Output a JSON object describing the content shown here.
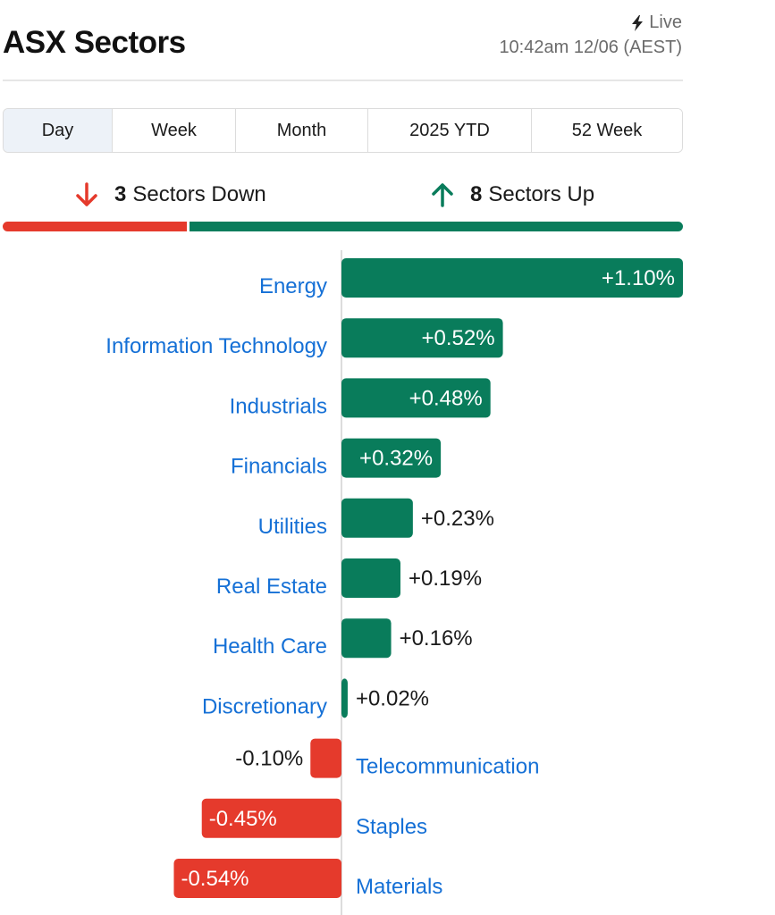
{
  "header": {
    "title": "ASX Sectors",
    "live_label": "Live",
    "timestamp": "10:42am 12/06 (AEST)"
  },
  "tabs": [
    {
      "label": "Day",
      "active": true
    },
    {
      "label": "Week",
      "active": false
    },
    {
      "label": "Month",
      "active": false
    },
    {
      "label": "2025 YTD",
      "active": false
    },
    {
      "label": "52 Week",
      "active": false
    }
  ],
  "summary": {
    "down_count": "3",
    "down_label": "Sectors Down",
    "up_count": "8",
    "up_label": "Sectors Up"
  },
  "icons": {
    "live": "lightning-bolt-icon",
    "down": "arrow-down-icon",
    "up": "arrow-up-icon"
  },
  "colors": {
    "up": "#097c5b",
    "down": "#e53a2c",
    "sector_link": "#1570d6"
  },
  "chart_data": {
    "type": "bar",
    "orientation": "horizontal",
    "title": "",
    "xlabel": "",
    "ylabel": "",
    "categories": [
      "Energy",
      "Information Technology",
      "Industrials",
      "Financials",
      "Utilities",
      "Real Estate",
      "Health Care",
      "Discretionary",
      "Telecommunication",
      "Staples",
      "Materials"
    ],
    "values": [
      1.1,
      0.52,
      0.48,
      0.32,
      0.23,
      0.19,
      0.16,
      0.02,
      -0.1,
      -0.45,
      -0.54
    ],
    "value_labels": [
      "+1.10%",
      "+0.52%",
      "+0.48%",
      "+0.32%",
      "+0.23%",
      "+0.19%",
      "+0.16%",
      "+0.02%",
      "-0.10%",
      "-0.45%",
      "-0.54%"
    ],
    "unit": "%"
  }
}
